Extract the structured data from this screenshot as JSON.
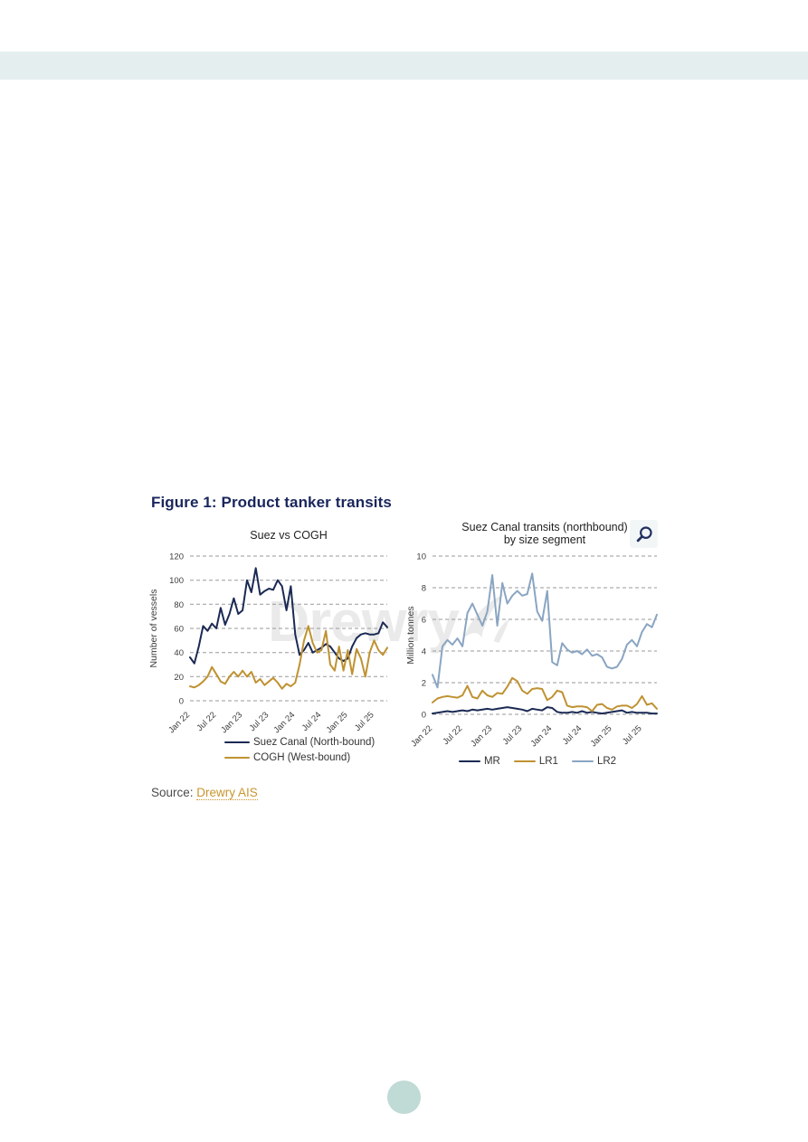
{
  "page": {
    "top_band_color": "#e4eeef",
    "scroll_dot_color": "#c0dad6"
  },
  "figure": {
    "title": "Figure 1: Product tanker transits",
    "source_prefix": "Source:",
    "source_link_text": "Drewry AIS"
  },
  "watermark": {
    "text": "Drewry"
  },
  "controls": {
    "zoom_button_icon": "magnifying-glass"
  },
  "chart_data": [
    {
      "type": "line",
      "title": "Suez vs COGH",
      "ylabel": "Number of vessels",
      "ylim": [
        0,
        120
      ],
      "yticks": [
        0,
        20,
        40,
        60,
        80,
        100,
        120
      ],
      "grid": "horizontal-dashed",
      "x_frequency": "monthly",
      "x_range": "Jan 2022 - Oct 2025",
      "x_tick_labels": [
        "Jan 22",
        "Jul 22",
        "Jan 23",
        "Jul 23",
        "Jan 24",
        "Jul 24",
        "Jan 25",
        "Jul 25"
      ],
      "x_tick_month_indexes": [
        0,
        6,
        12,
        18,
        24,
        30,
        36,
        42
      ],
      "legend_position": "bottom-stacked",
      "series": [
        {
          "name": "Suez Canal (North-bound)",
          "color": "#1b2a54",
          "values": [
            36,
            31,
            45,
            62,
            58,
            64,
            60,
            77,
            63,
            72,
            85,
            72,
            75,
            100,
            90,
            110,
            88,
            91,
            93,
            92,
            100,
            95,
            75,
            95,
            55,
            38,
            42,
            48,
            40,
            42,
            44,
            47,
            45,
            40,
            35,
            33,
            35,
            45,
            52,
            55,
            56,
            55,
            55,
            56,
            65,
            61
          ]
        },
        {
          "name": "COGH (West-bound)",
          "color": "#bf9232",
          "values": [
            12,
            11,
            13,
            16,
            20,
            28,
            22,
            16,
            14,
            20,
            24,
            20,
            25,
            20,
            24,
            15,
            18,
            13,
            16,
            19,
            15,
            10,
            14,
            12,
            15,
            30,
            50,
            62,
            48,
            40,
            42,
            58,
            30,
            25,
            45,
            25,
            42,
            22,
            43,
            35,
            20,
            40,
            50,
            42,
            38,
            44
          ]
        }
      ]
    },
    {
      "type": "line",
      "title_lines": [
        "Suez Canal transits (northbound)",
        "by size segment"
      ],
      "ylabel": "Million tonnes",
      "ylim": [
        0,
        10
      ],
      "yticks": [
        0,
        2,
        4,
        6,
        8,
        10
      ],
      "grid": "horizontal-dashed",
      "x_frequency": "monthly",
      "x_range": "Jan 2022 - Oct 2025",
      "x_tick_labels": [
        "Jan 22",
        "Jul 22",
        "Jan 23",
        "Jul 23",
        "Jan 24",
        "Jul 24",
        "Jan 25",
        "Jul 25"
      ],
      "x_tick_month_indexes": [
        0,
        6,
        12,
        18,
        24,
        30,
        36,
        42
      ],
      "legend_position": "bottom-horizontal",
      "series": [
        {
          "name": "MR",
          "color": "#1b2a54",
          "values": [
            0.05,
            0.1,
            0.15,
            0.2,
            0.15,
            0.2,
            0.25,
            0.2,
            0.3,
            0.25,
            0.3,
            0.35,
            0.3,
            0.35,
            0.4,
            0.45,
            0.4,
            0.35,
            0.3,
            0.2,
            0.35,
            0.3,
            0.25,
            0.45,
            0.4,
            0.15,
            0.1,
            0.1,
            0.15,
            0.1,
            0.2,
            0.1,
            0.15,
            0.1,
            0.05,
            0.1,
            0.15,
            0.2,
            0.25,
            0.1,
            0.15,
            0.1,
            0.1,
            0.1,
            0.05,
            0.05
          ]
        },
        {
          "name": "LR1",
          "color": "#bf9232",
          "values": [
            0.75,
            1.0,
            1.1,
            1.15,
            1.1,
            1.05,
            1.2,
            1.8,
            1.1,
            1.0,
            1.5,
            1.2,
            1.1,
            1.35,
            1.3,
            1.75,
            2.3,
            2.1,
            1.5,
            1.3,
            1.6,
            1.65,
            1.6,
            0.9,
            1.1,
            1.5,
            1.4,
            0.55,
            0.45,
            0.5,
            0.5,
            0.45,
            0.2,
            0.6,
            0.65,
            0.4,
            0.3,
            0.5,
            0.55,
            0.55,
            0.4,
            0.65,
            1.15,
            0.6,
            0.7,
            0.35
          ]
        },
        {
          "name": "LR2",
          "color": "#8aa5c2",
          "values": [
            2.5,
            1.7,
            4.3,
            4.7,
            4.4,
            4.8,
            4.3,
            6.4,
            7.0,
            6.3,
            5.6,
            6.5,
            8.8,
            5.6,
            8.3,
            7.0,
            7.5,
            7.8,
            7.5,
            7.6,
            8.9,
            6.5,
            5.9,
            7.8,
            3.3,
            3.1,
            4.5,
            4.1,
            3.9,
            4.0,
            3.8,
            4.1,
            3.7,
            3.8,
            3.6,
            3.0,
            2.9,
            3.0,
            3.5,
            4.4,
            4.7,
            4.3,
            5.2,
            5.7,
            5.5,
            6.3
          ]
        }
      ]
    }
  ]
}
